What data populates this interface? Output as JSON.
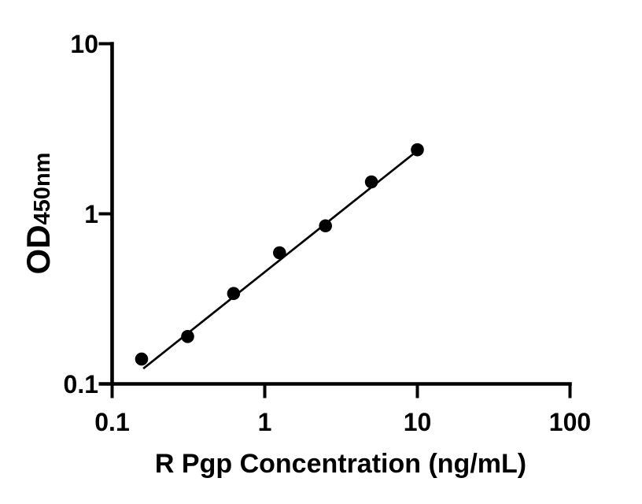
{
  "chart_data": {
    "type": "scatter",
    "title": "",
    "xlabel": "R Pgp Concentration (ng/mL)",
    "ylabel_main": "OD",
    "ylabel_sub": "450nm",
    "x_scale": "log",
    "y_scale": "log",
    "xlim": [
      0.1,
      100
    ],
    "ylim": [
      0.1,
      10
    ],
    "x": [
      0.156,
      0.3125,
      0.625,
      1.25,
      2.5,
      5,
      10
    ],
    "y": [
      0.14,
      0.19,
      0.34,
      0.59,
      0.85,
      1.54,
      2.38
    ],
    "x_ticks": {
      "values": [
        0.1,
        1,
        10,
        100
      ],
      "labels": [
        "0.1",
        "1",
        "10",
        "100"
      ]
    },
    "y_ticks": {
      "values": [
        0.1,
        1,
        10
      ],
      "labels": [
        "0.1",
        "1",
        "10"
      ]
    },
    "trendline": {
      "x1": 0.16,
      "y1": 0.123,
      "x2": 10.3,
      "y2": 2.4
    },
    "marker": {
      "shape": "circle",
      "color": "#000000",
      "radius_px": 8.3
    },
    "line_color": "#000000",
    "axis_color": "#000000",
    "background": "#ffffff",
    "grid": false,
    "legend": null
  }
}
